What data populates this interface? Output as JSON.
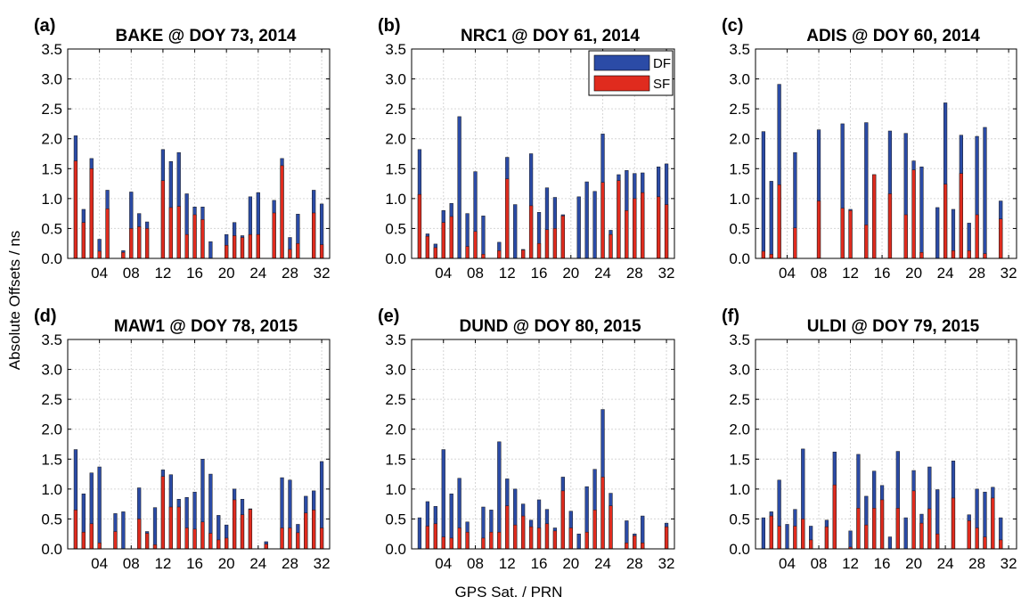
{
  "figure": {
    "ylabel": "Absolute Offsets / ns",
    "xlabel": "GPS Sat. / PRN"
  },
  "colors": {
    "DF": "#2b4ba6",
    "SF": "#e02b1e",
    "grid": "#d6d6d6"
  },
  "legend": {
    "location": "top-right",
    "panel": 1,
    "entries": [
      "DF",
      "SF"
    ]
  },
  "chart_data": [
    {
      "type": "bar",
      "label": "(a)",
      "title": "BAKE @ DOY 73, 2014",
      "ylim": [
        0,
        3.5
      ],
      "yticks": [
        "0.0",
        "0.5",
        "1.0",
        "1.5",
        "2.0",
        "2.5",
        "3.0",
        "3.5"
      ],
      "xticks": [
        "04",
        "08",
        "12",
        "16",
        "20",
        "24",
        "28",
        "32"
      ],
      "x_prn_ticks": [
        4,
        8,
        12,
        16,
        20,
        24,
        28,
        32
      ],
      "grid": true,
      "prn": [
        1,
        2,
        3,
        4,
        5,
        7,
        8,
        9,
        10,
        12,
        13,
        14,
        15,
        16,
        17,
        18,
        20,
        21,
        22,
        23,
        24,
        26,
        27,
        28,
        29,
        31,
        32
      ],
      "series": [
        {
          "name": "DF",
          "values": [
            2.05,
            0.82,
            1.67,
            0.32,
            1.14,
            0.13,
            1.11,
            0.75,
            0.61,
            1.82,
            1.62,
            1.77,
            1.08,
            0.86,
            0.86,
            0.28,
            0.4,
            0.6,
            0.38,
            1.03,
            1.1,
            0.97,
            1.67,
            0.35,
            0.74,
            1.14,
            0.91
          ]
        },
        {
          "name": "SF",
          "values": [
            1.63,
            0.6,
            1.5,
            0.12,
            0.83,
            0.1,
            0.5,
            0.53,
            0.5,
            1.3,
            0.85,
            0.87,
            0.4,
            0.73,
            0.65,
            0.0,
            0.22,
            0.38,
            0.35,
            0.4,
            0.4,
            0.76,
            1.55,
            0.15,
            0.25,
            0.76,
            0.23
          ]
        }
      ]
    },
    {
      "type": "bar",
      "label": "(b)",
      "title": "NRC1 @ DOY 61, 2014",
      "ylim": [
        0,
        3.5
      ],
      "yticks": [
        "0.0",
        "0.5",
        "1.0",
        "1.5",
        "2.0",
        "2.5",
        "3.0",
        "3.5"
      ],
      "xticks": [
        "04",
        "08",
        "12",
        "16",
        "20",
        "24",
        "28",
        "32"
      ],
      "x_prn_ticks": [
        4,
        8,
        12,
        16,
        20,
        24,
        28,
        32
      ],
      "grid": true,
      "prn": [
        1,
        2,
        3,
        4,
        5,
        6,
        7,
        8,
        9,
        10,
        11,
        12,
        13,
        14,
        15,
        16,
        17,
        18,
        19,
        21,
        22,
        23,
        24,
        25,
        26,
        27,
        28,
        29,
        31,
        32
      ],
      "series": [
        {
          "name": "DF",
          "values": [
            1.82,
            0.41,
            0.24,
            0.8,
            0.92,
            2.37,
            0.75,
            1.45,
            0.71,
            0.0,
            0.27,
            1.69,
            0.9,
            0.15,
            1.75,
            0.77,
            1.18,
            1.02,
            0.73,
            1.03,
            1.28,
            1.12,
            2.08,
            0.47,
            1.4,
            1.47,
            1.42,
            1.43,
            1.53,
            1.58
          ]
        },
        {
          "name": "SF",
          "values": [
            1.07,
            0.37,
            0.18,
            0.6,
            0.7,
            0.0,
            0.2,
            0.45,
            0.07,
            0.0,
            0.13,
            1.33,
            0.0,
            0.14,
            0.88,
            0.25,
            0.48,
            0.5,
            0.71,
            0.0,
            0.0,
            0.0,
            1.27,
            0.4,
            1.3,
            0.8,
            1.0,
            1.1,
            1.03,
            0.9
          ]
        }
      ]
    },
    {
      "type": "bar",
      "label": "(c)",
      "title": "ADIS @ DOY 60, 2014",
      "ylim": [
        0,
        3.5
      ],
      "yticks": [
        "0.0",
        "0.5",
        "1.0",
        "1.5",
        "2.0",
        "2.5",
        "3.0",
        "3.5"
      ],
      "xticks": [
        "04",
        "08",
        "12",
        "16",
        "20",
        "24",
        "28",
        "32"
      ],
      "x_prn_ticks": [
        4,
        8,
        12,
        16,
        20,
        24,
        28,
        32
      ],
      "grid": true,
      "prn": [
        1,
        2,
        3,
        5,
        8,
        11,
        12,
        14,
        15,
        17,
        19,
        20,
        21,
        23,
        24,
        25,
        26,
        27,
        28,
        29,
        31
      ],
      "series": [
        {
          "name": "DF",
          "values": [
            2.12,
            1.29,
            2.91,
            1.77,
            2.15,
            2.25,
            0.82,
            2.27,
            1.4,
            2.13,
            2.09,
            1.63,
            1.53,
            0.85,
            2.6,
            0.82,
            2.06,
            0.59,
            2.04,
            2.19,
            0.96
          ]
        },
        {
          "name": "SF",
          "values": [
            0.12,
            0.07,
            1.23,
            0.51,
            0.96,
            0.84,
            0.8,
            0.56,
            1.4,
            1.08,
            0.73,
            1.48,
            0.1,
            0.0,
            1.24,
            0.13,
            1.42,
            0.13,
            0.73,
            0.08,
            0.66
          ]
        }
      ]
    },
    {
      "type": "bar",
      "label": "(d)",
      "title": "MAW1 @ DOY 78, 2015",
      "ylim": [
        0,
        3.5
      ],
      "yticks": [
        "0.0",
        "0.5",
        "1.0",
        "1.5",
        "2.0",
        "2.5",
        "3.0",
        "3.5"
      ],
      "xticks": [
        "04",
        "08",
        "12",
        "16",
        "20",
        "24",
        "28",
        "32"
      ],
      "x_prn_ticks": [
        4,
        8,
        12,
        16,
        20,
        24,
        28,
        32
      ],
      "grid": true,
      "prn": [
        1,
        2,
        3,
        4,
        6,
        7,
        9,
        10,
        11,
        12,
        13,
        14,
        15,
        16,
        17,
        18,
        19,
        20,
        21,
        22,
        23,
        25,
        27,
        28,
        29,
        30,
        31,
        32
      ],
      "series": [
        {
          "name": "DF",
          "values": [
            1.66,
            0.92,
            1.27,
            1.37,
            0.59,
            0.62,
            1.02,
            0.29,
            0.69,
            1.32,
            1.24,
            0.83,
            0.86,
            0.95,
            1.5,
            1.25,
            0.56,
            0.4,
            1.0,
            0.83,
            0.67,
            0.12,
            1.19,
            1.15,
            0.41,
            0.88,
            0.97,
            1.46
          ]
        },
        {
          "name": "SF",
          "values": [
            0.65,
            0.28,
            0.42,
            0.1,
            0.29,
            0.0,
            0.5,
            0.26,
            0.07,
            1.21,
            0.7,
            0.7,
            0.35,
            0.33,
            0.45,
            0.26,
            0.15,
            0.18,
            0.82,
            0.57,
            0.66,
            0.08,
            0.35,
            0.35,
            0.27,
            0.6,
            0.65,
            0.35
          ]
        }
      ]
    },
    {
      "type": "bar",
      "label": "(e)",
      "title": "DUND @ DOY 80, 2015",
      "ylim": [
        0,
        3.5
      ],
      "yticks": [
        "0.0",
        "0.5",
        "1.0",
        "1.5",
        "2.0",
        "2.5",
        "3.0",
        "3.5"
      ],
      "xticks": [
        "04",
        "08",
        "12",
        "16",
        "20",
        "24",
        "28",
        "32"
      ],
      "x_prn_ticks": [
        4,
        8,
        12,
        16,
        20,
        24,
        28,
        32
      ],
      "grid": true,
      "prn": [
        1,
        2,
        3,
        4,
        5,
        6,
        7,
        9,
        10,
        11,
        12,
        13,
        14,
        15,
        16,
        17,
        18,
        19,
        20,
        21,
        22,
        23,
        24,
        25,
        27,
        28,
        29,
        32
      ],
      "series": [
        {
          "name": "DF",
          "values": [
            0.52,
            0.79,
            0.71,
            1.66,
            0.92,
            1.18,
            0.45,
            0.7,
            0.65,
            1.79,
            1.17,
            1.0,
            0.75,
            0.48,
            0.82,
            0.66,
            0.35,
            1.2,
            0.63,
            0.25,
            1.04,
            1.33,
            2.33,
            0.93,
            0.47,
            0.25,
            0.55,
            0.43
          ]
        },
        {
          "name": "SF",
          "values": [
            0.0,
            0.38,
            0.42,
            0.2,
            0.18,
            0.35,
            0.28,
            0.18,
            0.28,
            0.28,
            0.72,
            0.4,
            0.55,
            0.37,
            0.35,
            0.42,
            0.3,
            0.97,
            0.35,
            0.0,
            0.28,
            0.65,
            1.2,
            0.72,
            0.1,
            0.22,
            0.1,
            0.37
          ]
        }
      ]
    },
    {
      "type": "bar",
      "label": "(f)",
      "title": "ULDI @ DOY 79, 2015",
      "ylim": [
        0,
        3.5
      ],
      "yticks": [
        "0.0",
        "0.5",
        "1.0",
        "1.5",
        "2.0",
        "2.5",
        "3.0",
        "3.5"
      ],
      "xticks": [
        "04",
        "08",
        "12",
        "16",
        "20",
        "24",
        "28",
        "32"
      ],
      "x_prn_ticks": [
        4,
        8,
        12,
        16,
        20,
        24,
        28,
        32
      ],
      "grid": true,
      "prn": [
        1,
        2,
        3,
        4,
        5,
        6,
        7,
        9,
        10,
        12,
        13,
        14,
        15,
        16,
        17,
        18,
        19,
        20,
        21,
        22,
        23,
        25,
        27,
        28,
        29,
        30,
        31
      ],
      "series": [
        {
          "name": "DF",
          "values": [
            0.52,
            0.62,
            1.15,
            0.41,
            0.66,
            1.67,
            0.38,
            0.48,
            1.62,
            0.3,
            1.58,
            0.88,
            1.3,
            1.06,
            0.2,
            1.63,
            0.52,
            1.31,
            0.58,
            1.37,
            0.99,
            1.47,
            0.57,
            1.0,
            0.95,
            1.03,
            0.52
          ]
        },
        {
          "name": "SF",
          "values": [
            0.0,
            0.55,
            0.38,
            0.0,
            0.38,
            0.5,
            0.15,
            0.37,
            1.07,
            0.03,
            0.68,
            0.4,
            0.68,
            0.82,
            0.0,
            0.68,
            0.0,
            0.97,
            0.43,
            0.67,
            0.25,
            0.85,
            0.47,
            0.35,
            0.2,
            0.85,
            0.15
          ]
        }
      ]
    }
  ]
}
